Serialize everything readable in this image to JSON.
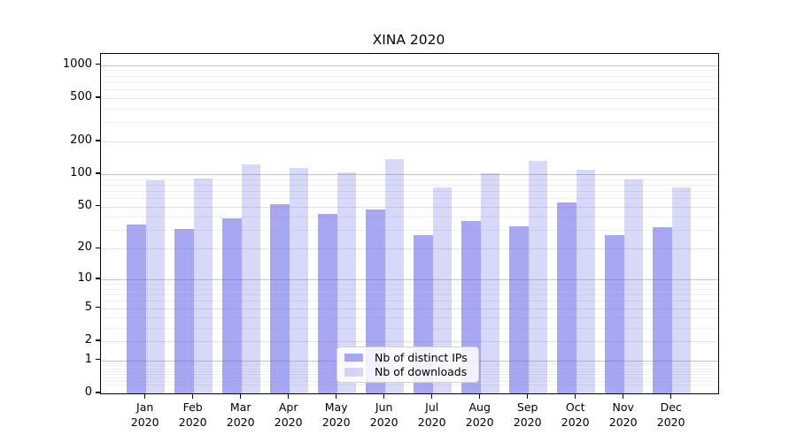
{
  "page": {
    "background": "#ffffff"
  },
  "chart_data": {
    "type": "bar",
    "title": "XINA 2020",
    "categories": [
      "Jan 2020",
      "Feb 2020",
      "Mar 2020",
      "Apr 2020",
      "May 2020",
      "Jun 2020",
      "Jul 2020",
      "Aug 2020",
      "Sep 2020",
      "Oct 2020",
      "Nov 2020",
      "Dec 2020"
    ],
    "series": [
      {
        "name": "Nb of distinct IPs",
        "color": "rgba(82,82,230,0.5)",
        "values": [
          34,
          31,
          39,
          53,
          43,
          47,
          27,
          37,
          33,
          55,
          27,
          32
        ]
      },
      {
        "name": "Nb of downloads",
        "color": "rgba(82,82,230,0.225)",
        "values": [
          88,
          91,
          123,
          114,
          103,
          137,
          75,
          102,
          132,
          110,
          89,
          75
        ]
      }
    ],
    "xlabel": "",
    "ylabel": "",
    "yscale": "symlog",
    "ylim": [
      0,
      1250
    ],
    "yticks": [
      0,
      1,
      2,
      5,
      10,
      20,
      50,
      100,
      200,
      500,
      1000
    ],
    "grid": "horizontal-only",
    "legend_position": "bottom-center"
  },
  "colors": {
    "axis": "#000000",
    "grid_major": "#c4c4c4",
    "grid_mid": "#e3e3e6",
    "grid_minor": "#f0f0f3"
  }
}
